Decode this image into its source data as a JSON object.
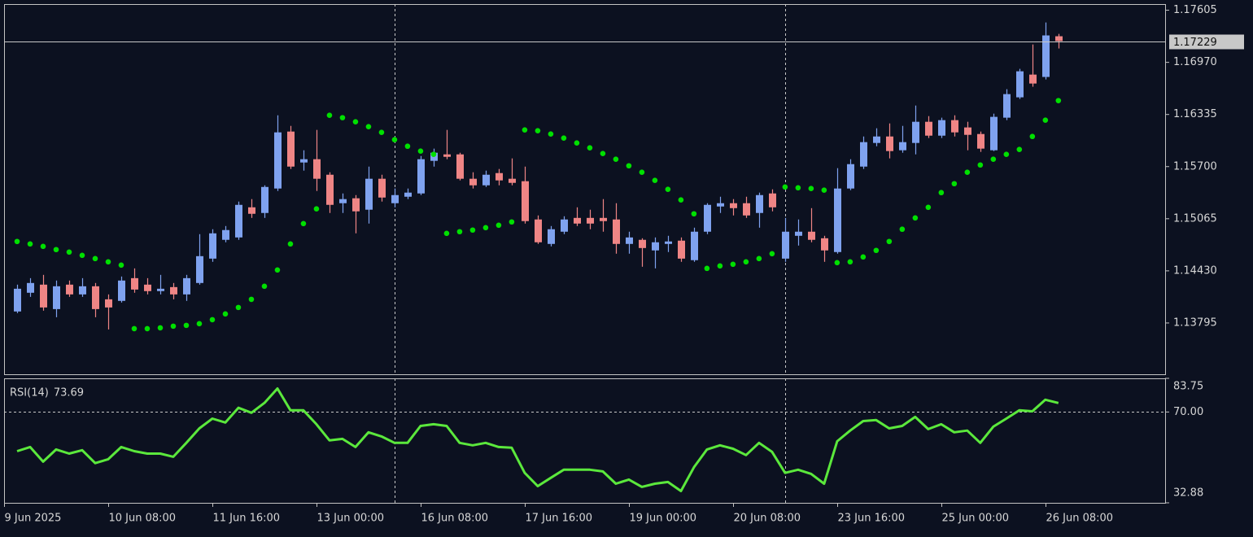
{
  "chart_data": [
    {
      "type": "candlestick",
      "up_color": "#7fa2ef",
      "down_color": "#ef8585",
      "open": [
        1.13935,
        1.14163,
        1.14262,
        1.13964,
        1.14262,
        1.14143,
        1.14242,
        1.14083,
        1.14064,
        1.14341,
        1.14262,
        1.14183,
        1.14232,
        1.14143,
        1.14282,
        1.14579,
        1.14808,
        1.14837,
        1.15204,
        1.15135,
        1.15433,
        1.16127,
        1.1575,
        1.1579,
        1.15601,
        1.15254,
        1.15314,
        1.15175,
        1.15552,
        1.15254,
        1.15333,
        1.15373,
        1.1577,
        1.15849,
        1.15849,
        1.15552,
        1.15472,
        1.15621,
        1.15552,
        1.15522,
        1.15056,
        1.14758,
        1.14907,
        1.15075,
        1.15075,
        1.15075,
        1.15056,
        1.14758,
        1.14808,
        1.14679,
        1.14758,
        1.14798,
        1.1456,
        1.14907,
        1.15214,
        1.15254,
        1.15254,
        1.15135,
        1.15373,
        1.14579,
        1.14857,
        1.14907,
        1.14827,
        1.14659,
        1.15433,
        1.157,
        1.15988,
        1.16067,
        1.15899,
        1.15988,
        1.16246,
        1.16077,
        1.16266,
        1.16177,
        1.16097,
        1.15899,
        1.16296,
        1.16544,
        1.16821,
        1.16792,
        1.17288
      ],
      "high": [
        1.14262,
        1.14341,
        1.14381,
        1.14312,
        1.14312,
        1.14341,
        1.14282,
        1.14143,
        1.14361,
        1.1446,
        1.14341,
        1.14381,
        1.14282,
        1.14381,
        1.14877,
        1.14937,
        1.14976,
        1.15274,
        1.15304,
        1.15472,
        1.16325,
        1.16196,
        1.15899,
        1.16147,
        1.15631,
        1.15373,
        1.15353,
        1.157,
        1.15601,
        1.15433,
        1.15433,
        1.15829,
        1.15919,
        1.16147,
        1.15869,
        1.15631,
        1.15651,
        1.15671,
        1.158,
        1.157,
        1.15105,
        1.14976,
        1.15095,
        1.15204,
        1.15175,
        1.15304,
        1.15254,
        1.14907,
        1.14827,
        1.14837,
        1.14857,
        1.14837,
        1.14956,
        1.15254,
        1.15333,
        1.15304,
        1.15333,
        1.15383,
        1.15423,
        1.15075,
        1.15056,
        1.15194,
        1.14857,
        1.15681,
        1.1579,
        1.16067,
        1.16167,
        1.16226,
        1.16196,
        1.16444,
        1.16315,
        1.16296,
        1.16325,
        1.16246,
        1.16127,
        1.16345,
        1.16643,
        1.16891,
        1.17188,
        1.17456,
        1.17317
      ],
      "low": [
        1.13915,
        1.14113,
        1.13945,
        1.13865,
        1.14113,
        1.14113,
        1.13865,
        1.13716,
        1.14044,
        1.14163,
        1.14143,
        1.14143,
        1.14083,
        1.14064,
        1.14262,
        1.1454,
        1.14778,
        1.14808,
        1.15075,
        1.15075,
        1.15403,
        1.15671,
        1.15651,
        1.15403,
        1.15135,
        1.15135,
        1.14887,
        1.15006,
        1.15274,
        1.15204,
        1.15304,
        1.15353,
        1.157,
        1.1579,
        1.15532,
        1.15433,
        1.15452,
        1.15472,
        1.15472,
        1.15006,
        1.14758,
        1.14728,
        1.14877,
        1.14976,
        1.14937,
        1.14907,
        1.14639,
        1.14639,
        1.1448,
        1.1446,
        1.14659,
        1.1454,
        1.1454,
        1.14877,
        1.15135,
        1.15105,
        1.15075,
        1.14956,
        1.15155,
        1.1454,
        1.14738,
        1.14778,
        1.1454,
        1.14639,
        1.15413,
        1.15671,
        1.15948,
        1.158,
        1.15869,
        1.15849,
        1.16048,
        1.16048,
        1.16067,
        1.15899,
        1.15879,
        1.15889,
        1.16266,
        1.16524,
        1.16673,
        1.16762,
        1.17139
      ],
      "close": [
        1.14212,
        1.14282,
        1.13984,
        1.14242,
        1.14143,
        1.14242,
        1.13964,
        1.13984,
        1.14312,
        1.14202,
        1.14183,
        1.14212,
        1.14143,
        1.14341,
        1.14609,
        1.14887,
        1.14927,
        1.15234,
        1.15125,
        1.15452,
        1.16117,
        1.157,
        1.1579,
        1.15552,
        1.15234,
        1.15304,
        1.15155,
        1.15552,
        1.15323,
        1.15353,
        1.15383,
        1.1579,
        1.15869,
        1.15819,
        1.15552,
        1.15472,
        1.15601,
        1.15532,
        1.15502,
        1.15036,
        1.14778,
        1.14937,
        1.15056,
        1.15006,
        1.15006,
        1.15036,
        1.14758,
        1.14837,
        1.14708,
        1.14778,
        1.14788,
        1.14579,
        1.14907,
        1.15234,
        1.15254,
        1.15194,
        1.15105,
        1.15353,
        1.15204,
        1.14907,
        1.14907,
        1.14808,
        1.14679,
        1.15433,
        1.1573,
        1.15998,
        1.16067,
        1.15889,
        1.15998,
        1.16246,
        1.16077,
        1.16266,
        1.16117,
        1.16087,
        1.15919,
        1.16306,
        1.16583,
        1.16861,
        1.16712,
        1.17298,
        1.17229
      ],
      "sar": {
        "color": "#00e000",
        "values": [
          1.14788,
          1.14758,
          1.14728,
          1.14689,
          1.14659,
          1.14619,
          1.14579,
          1.1454,
          1.145,
          1.13726,
          1.13726,
          1.13736,
          1.13756,
          1.13766,
          1.13786,
          1.13835,
          1.13905,
          1.13984,
          1.14083,
          1.14242,
          1.14441,
          1.14758,
          1.15006,
          1.15185,
          1.16325,
          1.16296,
          1.16246,
          1.16186,
          1.16117,
          1.16028,
          1.15948,
          1.15889,
          1.15849,
          1.14887,
          1.14907,
          1.14927,
          1.14956,
          1.14986,
          1.15026,
          1.16147,
          1.16137,
          1.16097,
          1.16048,
          1.15988,
          1.15929,
          1.15859,
          1.1579,
          1.1571,
          1.15631,
          1.15532,
          1.15423,
          1.15294,
          1.15125,
          1.1446,
          1.1449,
          1.1451,
          1.1454,
          1.14579,
          1.14639,
          1.15452,
          1.15442,
          1.15433,
          1.15413,
          1.1453,
          1.1454,
          1.14599,
          1.14679,
          1.14788,
          1.14937,
          1.15075,
          1.15204,
          1.15383,
          1.15492,
          1.15631,
          1.1572,
          1.1579,
          1.15849,
          1.15909,
          1.16067,
          1.16266,
          1.16504
        ]
      },
      "ylim": [
        1.1317,
        1.1768
      ],
      "yticks": [
        1.17605,
        {
          "value": 1.1697,
          "label": "1.16970"
        },
        1.16335,
        {
          "value": 1.157,
          "label": "1.15700"
        },
        1.15065,
        {
          "value": 1.1443,
          "label": "1.14430"
        },
        1.13795
      ],
      "xlim": [
        -1,
        88.2
      ],
      "xticks": [
        {
          "value": -1,
          "label": "9 Jun 2025"
        },
        {
          "value": 7,
          "label": "10 Jun 08:00"
        },
        {
          "value": 15,
          "label": "11 Jun 16:00"
        },
        {
          "value": 23,
          "label": "13 Jun 00:00"
        },
        {
          "value": 31,
          "label": "16 Jun 08:00"
        },
        {
          "value": 39,
          "label": "17 Jun 16:00"
        },
        {
          "value": 47,
          "label": "19 Jun 00:00"
        },
        {
          "value": 55,
          "label": "20 Jun 08:00"
        },
        {
          "value": 63,
          "label": "23 Jun 16:00"
        },
        {
          "value": 71,
          "label": "25 Jun 00:00"
        },
        {
          "value": 79,
          "label": "26 Jun 08:00"
        }
      ],
      "vlines": [
        29,
        59
      ]
    },
    {
      "type": "line",
      "label": "RSI(14)",
      "color": "#5be83c",
      "values": [
        54.0,
        55.7,
        49.7,
        54.7,
        53.0,
        54.4,
        49.1,
        50.7,
        55.7,
        54.0,
        53.0,
        53.0,
        51.7,
        57.4,
        63.3,
        67.3,
        65.7,
        71.7,
        69.7,
        73.7,
        79.6,
        70.7,
        70.7,
        65.0,
        58.4,
        59.0,
        55.7,
        61.7,
        60.0,
        57.4,
        57.4,
        64.3,
        65.0,
        64.3,
        57.4,
        56.4,
        57.4,
        55.7,
        55.4,
        45.1,
        39.7,
        43.1,
        46.4,
        46.4,
        46.4,
        45.7,
        40.7,
        42.4,
        39.4,
        40.7,
        41.4,
        37.7,
        47.4,
        54.7,
        56.4,
        55.0,
        52.4,
        57.4,
        53.7,
        45.1,
        46.4,
        44.7,
        40.7,
        58.0,
        62.4,
        66.3,
        66.7,
        63.3,
        64.3,
        68.0,
        63.0,
        65.0,
        61.7,
        62.4,
        57.4,
        64.0,
        67.3,
        70.7,
        70.3,
        75.0,
        73.69
      ],
      "ylim": [
        32.88,
        83.75
      ],
      "yticks": [
        83.75,
        {
          "value": 70,
          "label": "70.00"
        },
        32.88
      ],
      "levels": [
        70
      ]
    }
  ]
}
